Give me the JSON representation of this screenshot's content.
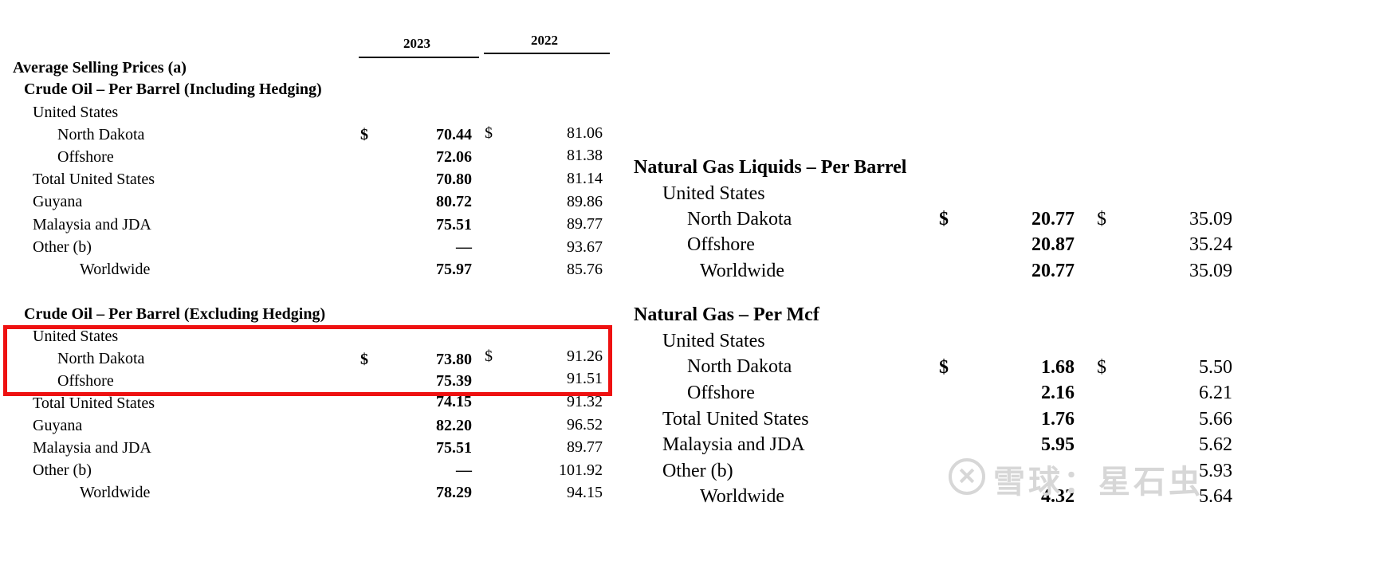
{
  "left": {
    "year_headers": [
      "2023",
      "2022"
    ],
    "title": "Average Selling Prices (a)",
    "sections": [
      {
        "heading": "Crude Oil – Per Barrel (Including Hedging)",
        "rows": [
          {
            "label": "United States",
            "v2023": "",
            "v2022": "",
            "dollar": false
          },
          {
            "label": "North Dakota",
            "v2023": "70.44",
            "v2022": "81.06",
            "dollar": true
          },
          {
            "label": "Offshore",
            "v2023": "72.06",
            "v2022": "81.38",
            "dollar": false
          },
          {
            "label": "Total United States",
            "v2023": "70.80",
            "v2022": "81.14",
            "dollar": false
          },
          {
            "label": "Guyana",
            "v2023": "80.72",
            "v2022": "89.86",
            "dollar": false
          },
          {
            "label": "Malaysia and JDA",
            "v2023": "75.51",
            "v2022": "89.77",
            "dollar": false
          },
          {
            "label": "Other (b)",
            "v2023": "—",
            "v2022": "93.67",
            "dollar": false
          },
          {
            "label": "Worldwide",
            "v2023": "75.97",
            "v2022": "85.76",
            "dollar": false
          }
        ]
      },
      {
        "heading": "Crude Oil – Per Barrel (Excluding Hedging)",
        "rows": [
          {
            "label": "United States",
            "v2023": "",
            "v2022": "",
            "dollar": false
          },
          {
            "label": "North Dakota",
            "v2023": "73.80",
            "v2022": "91.26",
            "dollar": true
          },
          {
            "label": "Offshore",
            "v2023": "75.39",
            "v2022": "91.51",
            "dollar": false
          },
          {
            "label": "Total United States",
            "v2023": "74.15",
            "v2022": "91.32",
            "dollar": false
          },
          {
            "label": "Guyana",
            "v2023": "82.20",
            "v2022": "96.52",
            "dollar": false
          },
          {
            "label": "Malaysia and JDA",
            "v2023": "75.51",
            "v2022": "89.77",
            "dollar": false
          },
          {
            "label": "Other (b)",
            "v2023": "—",
            "v2022": "101.92",
            "dollar": false
          },
          {
            "label": "Worldwide",
            "v2023": "78.29",
            "v2022": "94.15",
            "dollar": false
          }
        ]
      }
    ]
  },
  "right": {
    "sections": [
      {
        "heading": "Natural Gas Liquids – Per Barrel",
        "rows": [
          {
            "label": "United States",
            "v2023": "",
            "v2022": "",
            "dollar": false
          },
          {
            "label": "North Dakota",
            "v2023": "20.77",
            "v2022": "35.09",
            "dollar": true
          },
          {
            "label": "Offshore",
            "v2023": "20.87",
            "v2022": "35.24",
            "dollar": false
          },
          {
            "label": "Worldwide",
            "v2023": "20.77",
            "v2022": "35.09",
            "dollar": false
          }
        ]
      },
      {
        "heading": "Natural Gas – Per Mcf",
        "rows": [
          {
            "label": "United States",
            "v2023": "",
            "v2022": "",
            "dollar": false
          },
          {
            "label": "North Dakota",
            "v2023": "1.68",
            "v2022": "5.50",
            "dollar": true
          },
          {
            "label": "Offshore",
            "v2023": "2.16",
            "v2022": "6.21",
            "dollar": false
          },
          {
            "label": "Total United States",
            "v2023": "1.76",
            "v2022": "5.66",
            "dollar": false
          },
          {
            "label": "Malaysia and JDA",
            "v2023": "5.95",
            "v2022": "5.62",
            "dollar": false
          },
          {
            "label": "Other (b)",
            "v2023": "",
            "v2022": "5.93",
            "dollar": false
          },
          {
            "label": "Worldwide",
            "v2023": "4.32",
            "v2022": "5.64",
            "dollar": false
          }
        ]
      }
    ]
  },
  "currency_symbol": "$",
  "highlight_color": "#ee1111",
  "watermark": {
    "text": "雪球：星石虫",
    "icon": "snowball-logo-icon"
  }
}
